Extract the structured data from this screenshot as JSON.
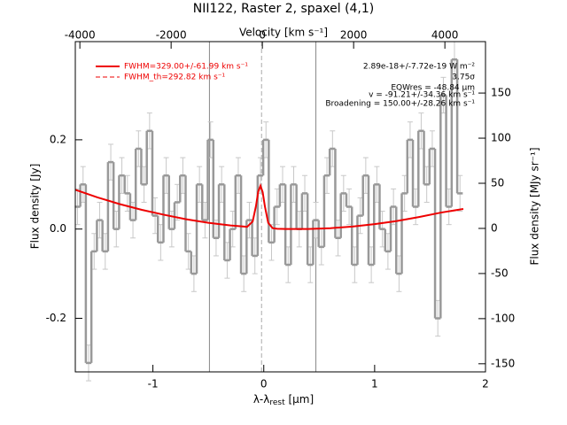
{
  "chart_data": {
    "type": "step",
    "title": "NII122, Raster 2, spaxel (4,1)",
    "x_label": {
      "main": "λ-λ",
      "sub": "rest",
      "unit": " [μm]"
    },
    "top_x_label": "Velocity [km s⁻¹]",
    "y_label": "Flux density [Jy]",
    "y2_label": "Flux density [MJy sr⁻¹]",
    "xlim": [
      -1.7,
      2.0
    ],
    "xticks": [
      -1,
      0,
      1,
      2
    ],
    "x2lim": [
      -4100,
      4890
    ],
    "x2ticks": [
      -4000,
      -2000,
      0,
      2000,
      4000
    ],
    "ylim": [
      -0.32,
      0.42
    ],
    "yticks": [
      -0.2,
      {
        "value": 0,
        "label": "0.0"
      },
      0.2
    ],
    "y2lim": [
      -159,
      207
    ],
    "y2ticks": [
      -150,
      -100,
      -50,
      0,
      50,
      100,
      150
    ],
    "vlines": [
      -0.49,
      0.47
    ],
    "dashed_vline": -0.02,
    "series": [
      {
        "name": "spectrum",
        "color": "#999999",
        "x": [
          -1.68,
          -1.63,
          -1.58,
          -1.53,
          -1.48,
          -1.43,
          -1.38,
          -1.33,
          -1.28,
          -1.23,
          -1.18,
          -1.13,
          -1.08,
          -1.03,
          -0.98,
          -0.93,
          -0.88,
          -0.83,
          -0.78,
          -0.73,
          -0.68,
          -0.63,
          -0.58,
          -0.53,
          -0.48,
          -0.43,
          -0.38,
          -0.33,
          -0.28,
          -0.23,
          -0.18,
          -0.13,
          -0.08,
          -0.03,
          0.02,
          0.07,
          0.12,
          0.17,
          0.22,
          0.27,
          0.32,
          0.37,
          0.42,
          0.47,
          0.52,
          0.57,
          0.62,
          0.67,
          0.72,
          0.77,
          0.82,
          0.87,
          0.92,
          0.97,
          1.02,
          1.07,
          1.12,
          1.17,
          1.22,
          1.27,
          1.32,
          1.37,
          1.42,
          1.47,
          1.52,
          1.57,
          1.62,
          1.67,
          1.72,
          1.77
        ],
        "values": [
          0.05,
          0.1,
          -0.3,
          -0.05,
          0.02,
          -0.05,
          0.15,
          0.0,
          0.12,
          0.08,
          0.02,
          0.18,
          0.1,
          0.22,
          0.03,
          -0.03,
          0.12,
          0.0,
          0.06,
          0.12,
          -0.05,
          -0.1,
          0.1,
          0.02,
          0.2,
          -0.02,
          0.1,
          -0.07,
          0.0,
          0.12,
          -0.1,
          0.02,
          -0.06,
          0.12,
          0.2,
          -0.03,
          0.05,
          0.1,
          -0.08,
          0.1,
          0.0,
          0.08,
          -0.08,
          0.02,
          -0.04,
          0.12,
          0.18,
          -0.02,
          0.08,
          0.05,
          -0.08,
          0.03,
          0.12,
          -0.08,
          0.1,
          0.0,
          -0.05,
          0.05,
          -0.1,
          0.08,
          0.2,
          0.05,
          0.22,
          0.1,
          0.18,
          -0.2,
          0.3,
          0.05,
          0.38,
          0.08
        ],
        "errors": [
          0.04,
          0.04,
          0.04,
          0.04,
          0.04,
          0.04,
          0.04,
          0.04,
          0.04,
          0.04,
          0.04,
          0.04,
          0.04,
          0.04,
          0.04,
          0.04,
          0.04,
          0.04,
          0.04,
          0.04,
          0.04,
          0.04,
          0.04,
          0.04,
          0.04,
          0.04,
          0.04,
          0.04,
          0.04,
          0.04,
          0.04,
          0.04,
          0.04,
          0.04,
          0.04,
          0.04,
          0.04,
          0.04,
          0.04,
          0.04,
          0.04,
          0.04,
          0.04,
          0.04,
          0.04,
          0.04,
          0.04,
          0.04,
          0.04,
          0.04,
          0.04,
          0.04,
          0.04,
          0.04,
          0.04,
          0.04,
          0.04,
          0.04,
          0.04,
          0.04,
          0.04,
          0.04,
          0.04,
          0.04,
          0.04,
          0.04,
          0.04,
          0.04,
          0.04,
          0.04
        ]
      },
      {
        "name": "FWHM=329.00+/-61.99 km s⁻¹",
        "color": "#ee0000",
        "x": [
          -1.7,
          -1.5,
          -1.3,
          -1.1,
          -0.9,
          -0.7,
          -0.5,
          -0.3,
          -0.2,
          -0.15,
          -0.1,
          -0.07,
          -0.05,
          -0.03,
          -0.01,
          0.01,
          0.04,
          0.08,
          0.12,
          0.2,
          0.4,
          0.6,
          0.8,
          1.0,
          1.2,
          1.4,
          1.6,
          1.8
        ],
        "values": [
          0.088,
          0.071,
          0.056,
          0.043,
          0.032,
          0.022,
          0.014,
          0.008,
          0.006,
          0.005,
          0.017,
          0.052,
          0.084,
          0.097,
          0.083,
          0.051,
          0.014,
          0.002,
          0.0007,
          0.0002,
          0.0002,
          0.002,
          0.0055,
          0.011,
          0.018,
          0.027,
          0.037,
          0.045
        ]
      }
    ],
    "legend_dashed": "FWHM_th=292.82 km s⁻¹",
    "annotations": [
      "2.89e-18+/-7.72e-19 W m⁻²",
      "3.75σ",
      "EQWres = -48.84 μm",
      "v = -91.21+/-34.36 km s⁻¹",
      "Broadening = 150.00+/-28.26 km s⁻¹"
    ]
  }
}
